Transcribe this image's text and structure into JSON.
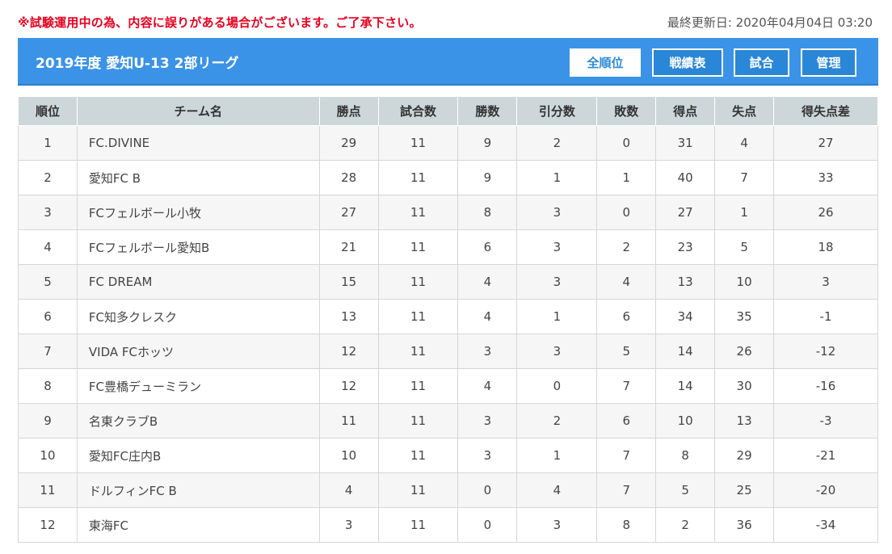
{
  "notice": "※試験運用中の為、内容に誤りがある場合がございます。ご了承下さい。",
  "updated": "最終更新日: 2020年04月04日 03:20",
  "league": {
    "title": "2019年度 愛知U-13 2部リーグ",
    "nav": [
      "全順位",
      "戦績表",
      "試合",
      "管理"
    ],
    "active_nav": "全順位"
  },
  "colors": {
    "accent": "#3b93e7",
    "notice": "#e6001f",
    "header_row": "#cdd7da"
  },
  "table": {
    "headers": [
      "順位",
      "チーム名",
      "勝点",
      "試合数",
      "勝数",
      "引分数",
      "敗数",
      "得点",
      "失点",
      "得失点差"
    ],
    "rows": [
      [
        "1",
        "FC.DIVINE",
        "29",
        "11",
        "9",
        "2",
        "0",
        "31",
        "4",
        "27"
      ],
      [
        "2",
        "愛知FC B",
        "28",
        "11",
        "9",
        "1",
        "1",
        "40",
        "7",
        "33"
      ],
      [
        "3",
        "FCフェルボール小牧",
        "27",
        "11",
        "8",
        "3",
        "0",
        "27",
        "1",
        "26"
      ],
      [
        "4",
        "FCフェルボール愛知B",
        "21",
        "11",
        "6",
        "3",
        "2",
        "23",
        "5",
        "18"
      ],
      [
        "5",
        "FC DREAM",
        "15",
        "11",
        "4",
        "3",
        "4",
        "13",
        "10",
        "3"
      ],
      [
        "6",
        "FC知多クレスク",
        "13",
        "11",
        "4",
        "1",
        "6",
        "34",
        "35",
        "-1"
      ],
      [
        "7",
        "VIDA FCホッツ",
        "12",
        "11",
        "3",
        "3",
        "5",
        "14",
        "26",
        "-12"
      ],
      [
        "8",
        "FC豊橋デューミラン",
        "12",
        "11",
        "4",
        "0",
        "7",
        "14",
        "30",
        "-16"
      ],
      [
        "9",
        "名東クラブB",
        "11",
        "11",
        "3",
        "2",
        "6",
        "10",
        "13",
        "-3"
      ],
      [
        "10",
        "愛知FC庄内B",
        "10",
        "11",
        "3",
        "1",
        "7",
        "8",
        "29",
        "-21"
      ],
      [
        "11",
        "ドルフィンFC B",
        "4",
        "11",
        "0",
        "4",
        "7",
        "5",
        "25",
        "-20"
      ],
      [
        "12",
        "東海FC",
        "3",
        "11",
        "0",
        "3",
        "8",
        "2",
        "36",
        "-34"
      ]
    ]
  }
}
